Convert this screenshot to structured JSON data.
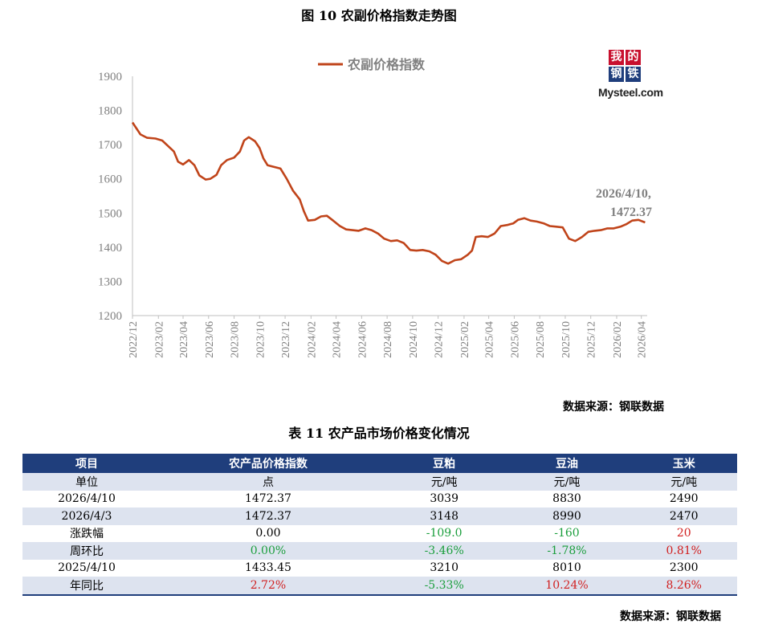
{
  "figure_title": "图 10 农副价格指数走势图",
  "chart_data": {
    "type": "line",
    "series": [
      {
        "name": "农副价格指数",
        "color": "#c0441a",
        "points": [
          [
            "2022-12-01",
            1765
          ],
          [
            "2022-12-20",
            1730
          ],
          [
            "2023-01-05",
            1720
          ],
          [
            "2023-01-25",
            1718
          ],
          [
            "2023-02-10",
            1712
          ],
          [
            "2023-02-25",
            1695
          ],
          [
            "2023-03-10",
            1680
          ],
          [
            "2023-03-20",
            1650
          ],
          [
            "2023-04-01",
            1642
          ],
          [
            "2023-04-15",
            1655
          ],
          [
            "2023-04-28",
            1640
          ],
          [
            "2023-05-10",
            1610
          ],
          [
            "2023-05-25",
            1598
          ],
          [
            "2023-06-05",
            1600
          ],
          [
            "2023-06-20",
            1612
          ],
          [
            "2023-07-01",
            1640
          ],
          [
            "2023-07-15",
            1655
          ],
          [
            "2023-08-01",
            1662
          ],
          [
            "2023-08-15",
            1680
          ],
          [
            "2023-08-25",
            1712
          ],
          [
            "2023-09-05",
            1722
          ],
          [
            "2023-09-20",
            1710
          ],
          [
            "2023-10-01",
            1690
          ],
          [
            "2023-10-10",
            1660
          ],
          [
            "2023-10-20",
            1640
          ],
          [
            "2023-11-01",
            1636
          ],
          [
            "2023-11-20",
            1630
          ],
          [
            "2023-12-05",
            1600
          ],
          [
            "2023-12-20",
            1565
          ],
          [
            "2024-01-05",
            1540
          ],
          [
            "2024-01-15",
            1505
          ],
          [
            "2024-01-25",
            1478
          ],
          [
            "2024-02-10",
            1480
          ],
          [
            "2024-02-25",
            1490
          ],
          [
            "2024-03-10",
            1492
          ],
          [
            "2024-03-25",
            1478
          ],
          [
            "2024-04-10",
            1462
          ],
          [
            "2024-04-25",
            1452
          ],
          [
            "2024-05-10",
            1450
          ],
          [
            "2024-05-25",
            1448
          ],
          [
            "2024-06-10",
            1455
          ],
          [
            "2024-06-25",
            1450
          ],
          [
            "2024-07-10",
            1440
          ],
          [
            "2024-07-25",
            1425
          ],
          [
            "2024-08-10",
            1418
          ],
          [
            "2024-08-25",
            1420
          ],
          [
            "2024-09-10",
            1412
          ],
          [
            "2024-09-25",
            1392
          ],
          [
            "2024-10-10",
            1390
          ],
          [
            "2024-10-25",
            1392
          ],
          [
            "2024-11-10",
            1388
          ],
          [
            "2024-11-25",
            1378
          ],
          [
            "2024-12-10",
            1360
          ],
          [
            "2024-12-25",
            1352
          ],
          [
            "2025-01-10",
            1362
          ],
          [
            "2025-01-25",
            1365
          ],
          [
            "2025-02-10",
            1378
          ],
          [
            "2025-02-20",
            1390
          ],
          [
            "2025-03-01",
            1430
          ],
          [
            "2025-03-15",
            1432
          ],
          [
            "2025-03-30",
            1430
          ],
          [
            "2025-04-15",
            1440
          ],
          [
            "2025-04-30",
            1462
          ],
          [
            "2025-05-15",
            1465
          ],
          [
            "2025-05-30",
            1470
          ],
          [
            "2025-06-10",
            1480
          ],
          [
            "2025-06-25",
            1485
          ],
          [
            "2025-07-10",
            1478
          ],
          [
            "2025-07-25",
            1475
          ],
          [
            "2025-08-10",
            1470
          ],
          [
            "2025-08-25",
            1462
          ],
          [
            "2025-09-10",
            1460
          ],
          [
            "2025-09-25",
            1458
          ],
          [
            "2025-10-10",
            1425
          ],
          [
            "2025-10-25",
            1418
          ],
          [
            "2025-11-10",
            1430
          ],
          [
            "2025-11-25",
            1445
          ],
          [
            "2025-12-10",
            1448
          ],
          [
            "2025-12-25",
            1450
          ],
          [
            "2026-01-10",
            1455
          ],
          [
            "2026-01-25",
            1455
          ],
          [
            "2026-02-10",
            1460
          ],
          [
            "2026-02-25",
            1468
          ],
          [
            "2026-03-10",
            1478
          ],
          [
            "2026-03-25",
            1480
          ],
          [
            "2026-04-10",
            1472.37
          ]
        ]
      }
    ],
    "y_ticks": [
      "1900",
      "1800",
      "1700",
      "1600",
      "1500",
      "1400",
      "1300",
      "1200"
    ],
    "x_ticks": [
      "2022/12",
      "2023/02",
      "2023/04",
      "2023/06",
      "2023/08",
      "2023/10",
      "2023/12",
      "2024/02",
      "2024/04",
      "2024/06",
      "2024/08",
      "2024/10",
      "2024/12",
      "2025/02",
      "2025/04",
      "2025/06",
      "2025/08",
      "2025/10",
      "2025/12",
      "2026/02",
      "2026/04"
    ],
    "ylim": [
      1200,
      1900
    ],
    "annotation": {
      "line1": "2026/4/10,",
      "line2": "1472.37"
    },
    "legend_position": "top"
  },
  "logo": {
    "chars": [
      "我",
      "的",
      "钢",
      "铁"
    ],
    "text": "Mysteel.com"
  },
  "source_chart": "数据来源：钢联数据",
  "table_title": "表 11 农产品市场价格变化情况",
  "table": {
    "headers": [
      "项目",
      "农产品价格指数",
      "豆粕",
      "豆油",
      "玉米"
    ],
    "rows": [
      {
        "cells": [
          "单位",
          "点",
          "元/吨",
          "元/吨",
          "元/吨"
        ],
        "colors": [
          "",
          "",
          "",
          "",
          ""
        ]
      },
      {
        "cells": [
          "2026/4/10",
          "1472.37",
          "3039",
          "8830",
          "2490"
        ],
        "colors": [
          "",
          "",
          "",
          "",
          ""
        ]
      },
      {
        "cells": [
          "2026/4/3",
          "1472.37",
          "3148",
          "8990",
          "2470"
        ],
        "colors": [
          "",
          "",
          "",
          "",
          ""
        ]
      },
      {
        "cells": [
          "涨跌幅",
          "0.00",
          "-109.0",
          "-160",
          "20"
        ],
        "colors": [
          "",
          "",
          "green",
          "green",
          "red"
        ]
      },
      {
        "cells": [
          "周环比",
          "0.00%",
          "-3.46%",
          "-1.78%",
          "0.81%"
        ],
        "colors": [
          "",
          "green",
          "green",
          "green",
          "red"
        ]
      },
      {
        "cells": [
          "2025/4/10",
          "1433.45",
          "3210",
          "8010",
          "2300"
        ],
        "colors": [
          "",
          "",
          "",
          "",
          ""
        ]
      },
      {
        "cells": [
          "年同比",
          "2.72%",
          "-5.33%",
          "10.24%",
          "8.26%"
        ],
        "colors": [
          "",
          "red",
          "green",
          "red",
          "red"
        ]
      }
    ]
  },
  "source_table": "数据来源：钢联数据"
}
